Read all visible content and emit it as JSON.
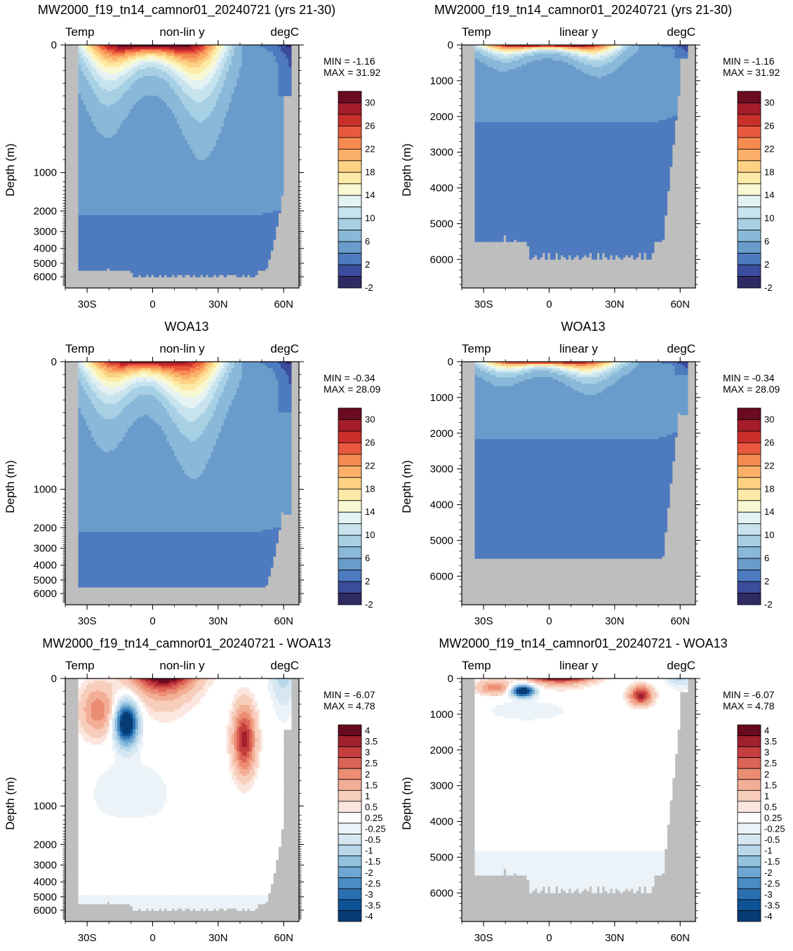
{
  "chart_data": [
    {
      "type": "heatmap",
      "title": "MW2000_f19_tn14_camnor01_20240721 (yrs 21-30)",
      "left_label": "Temp",
      "center_label": "non-lin y",
      "right_label": "degC",
      "ylabel": "Depth (m)",
      "x_ticks": [
        "30S",
        "0",
        "30N",
        "60N"
      ],
      "y_ticks": [
        "0",
        "1000",
        "2000",
        "3000",
        "4000",
        "5000",
        "6000"
      ],
      "y_scale": "non-linear",
      "min_text": "MIN =  -1.16",
      "max_text": "MAX =  31.92",
      "colorbar_labels": [
        "30",
        "26",
        "22",
        "18",
        "14",
        "10",
        "6",
        "2",
        "-2"
      ],
      "field": "model"
    },
    {
      "type": "heatmap",
      "title": "MW2000_f19_tn14_camnor01_20240721 (yrs 21-30)",
      "left_label": "Temp",
      "center_label": "linear y",
      "right_label": "degC",
      "ylabel": "Depth (m)",
      "x_ticks": [
        "30S",
        "0",
        "30N",
        "60N"
      ],
      "y_ticks": [
        "0",
        "1000",
        "2000",
        "3000",
        "4000",
        "5000",
        "6000"
      ],
      "y_scale": "linear",
      "min_text": "MIN =  -1.16",
      "max_text": "MAX =  31.92",
      "colorbar_labels": [
        "30",
        "26",
        "22",
        "18",
        "14",
        "10",
        "6",
        "2",
        "-2"
      ],
      "field": "model"
    },
    {
      "type": "heatmap",
      "title": "WOA13",
      "left_label": "Temp",
      "center_label": "non-lin y",
      "right_label": "degC",
      "ylabel": "Depth (m)",
      "x_ticks": [
        "30S",
        "0",
        "30N",
        "60N"
      ],
      "y_ticks": [
        "0",
        "1000",
        "2000",
        "3000",
        "4000",
        "5000",
        "6000"
      ],
      "y_scale": "non-linear",
      "min_text": "MIN =  -0.34",
      "max_text": "MAX =  28.09",
      "colorbar_labels": [
        "30",
        "26",
        "22",
        "18",
        "14",
        "10",
        "6",
        "2",
        "-2"
      ],
      "field": "obs"
    },
    {
      "type": "heatmap",
      "title": "WOA13",
      "left_label": "Temp",
      "center_label": "linear y",
      "right_label": "degC",
      "ylabel": "Depth (m)",
      "x_ticks": [
        "30S",
        "0",
        "30N",
        "60N"
      ],
      "y_ticks": [
        "0",
        "1000",
        "2000",
        "3000",
        "4000",
        "5000",
        "6000"
      ],
      "y_scale": "linear",
      "min_text": "MIN =  -0.34",
      "max_text": "MAX =  28.09",
      "colorbar_labels": [
        "30",
        "26",
        "22",
        "18",
        "14",
        "10",
        "6",
        "2",
        "-2"
      ],
      "field": "obs"
    },
    {
      "type": "heatmap",
      "title": "MW2000_f19_tn14_camnor01_20240721 - WOA13",
      "left_label": "Temp",
      "center_label": "non-lin y",
      "right_label": "degC",
      "ylabel": "Depth (m)",
      "x_ticks": [
        "30S",
        "0",
        "30N",
        "60N"
      ],
      "y_ticks": [
        "0",
        "1000",
        "2000",
        "3000",
        "4000",
        "5000",
        "6000"
      ],
      "y_scale": "non-linear",
      "min_text": "MIN =  -6.07",
      "max_text": "MAX =   4.78",
      "colorbar_labels": [
        "4",
        "3.5",
        "3",
        "2.5",
        "2",
        "1.5",
        "1",
        "0.5",
        "0.25",
        "-0.25",
        "-0.5",
        "-1",
        "-1.5",
        "-2",
        "-2.5",
        "-3",
        "-3.5",
        "-4"
      ],
      "field": "diff"
    },
    {
      "type": "heatmap",
      "title": "MW2000_f19_tn14_camnor01_20240721 - WOA13",
      "left_label": "Temp",
      "center_label": "linear y",
      "right_label": "degC",
      "ylabel": "Depth (m)",
      "x_ticks": [
        "30S",
        "0",
        "30N",
        "60N"
      ],
      "y_ticks": [
        "0",
        "1000",
        "2000",
        "3000",
        "4000",
        "5000",
        "6000"
      ],
      "y_scale": "linear",
      "min_text": "MIN =  -6.07",
      "max_text": "MAX =   4.78",
      "colorbar_labels": [
        "4",
        "3.5",
        "3",
        "2.5",
        "2",
        "1.5",
        "1",
        "0.5",
        "0.25",
        "-0.25",
        "-0.5",
        "-1",
        "-1.5",
        "-2",
        "-2.5",
        "-3",
        "-3.5",
        "-4"
      ],
      "field": "diff"
    }
  ],
  "colors": {
    "land": "#bebebe",
    "temp_scale": [
      "#2e2a63",
      "#3c4c9c",
      "#4e7bbf",
      "#6a9ccb",
      "#8ab8d9",
      "#a8d0e4",
      "#c7e3ee",
      "#e4f2f3",
      "#f8f8d2",
      "#fdeaa6",
      "#fdd183",
      "#fbb06a",
      "#f68b52",
      "#e9593f",
      "#cb2f2c",
      "#a51d2a",
      "#6b0b22"
    ],
    "diff_scale": [
      "#063c74",
      "#0f5397",
      "#2c6fb1",
      "#4a8cc3",
      "#6ea8d2",
      "#93c2df",
      "#b8d7ea",
      "#d6e7f2",
      "#ebf3f8",
      "#ffffff",
      "#fbe7df",
      "#f7cdbb",
      "#f3ae96",
      "#eb8d73",
      "#dc6356",
      "#c43e3e",
      "#a1202d",
      "#6a0a1e"
    ]
  }
}
